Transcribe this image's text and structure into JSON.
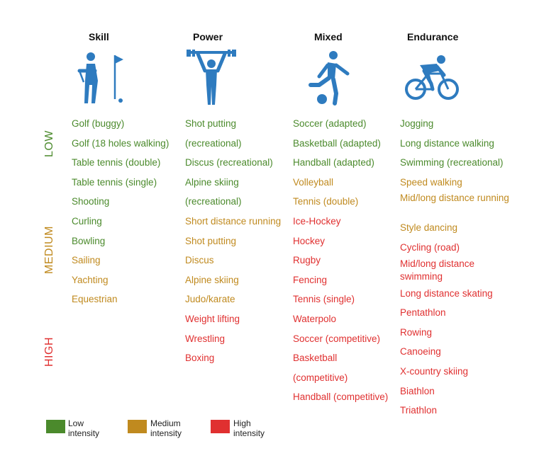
{
  "columns": [
    {
      "title": "Skill",
      "icon": "golfer-icon",
      "items": [
        {
          "text": "Golf (buggy)",
          "level": "low"
        },
        {
          "text": "Golf (18 holes walking)",
          "level": "low"
        },
        {
          "text": "Table tennis (double)",
          "level": "low"
        },
        {
          "text": "Table tennis (single)",
          "level": "low"
        },
        {
          "text": "Shooting",
          "level": "low"
        },
        {
          "text": "Curling",
          "level": "low"
        },
        {
          "text": "Bowling",
          "level": "low"
        },
        {
          "text": "Sailing",
          "level": "medium"
        },
        {
          "text": "Yachting",
          "level": "medium"
        },
        {
          "text": "Equestrian",
          "level": "medium"
        }
      ]
    },
    {
      "title": "Power",
      "icon": "weightlifter-icon",
      "items": [
        {
          "text": "Shot putting",
          "level": "low"
        },
        {
          "text": "(recreational)",
          "level": "low"
        },
        {
          "text": "Discus (recreational)",
          "level": "low"
        },
        {
          "text": "Alpine skiing",
          "level": "low"
        },
        {
          "text": "(recreational)",
          "level": "low"
        },
        {
          "text": "Short distance running",
          "level": "medium"
        },
        {
          "text": "Shot putting",
          "level": "medium"
        },
        {
          "text": "Discus",
          "level": "medium"
        },
        {
          "text": "Alpine skiing",
          "level": "medium"
        },
        {
          "text": "Judo/karate",
          "level": "medium"
        },
        {
          "text": "Weight lifting",
          "level": "high"
        },
        {
          "text": "Wrestling",
          "level": "high"
        },
        {
          "text": "Boxing",
          "level": "high"
        }
      ]
    },
    {
      "title": "Mixed",
      "icon": "soccer-player-icon",
      "items": [
        {
          "text": "Soccer (adapted)",
          "level": "low"
        },
        {
          "text": "Basketball (adapted)",
          "level": "low"
        },
        {
          "text": "Handball (adapted)",
          "level": "low"
        },
        {
          "text": "Volleyball",
          "level": "medium"
        },
        {
          "text": "Tennis (double)",
          "level": "medium"
        },
        {
          "text": "Ice-Hockey",
          "level": "high"
        },
        {
          "text": "Hockey",
          "level": "high"
        },
        {
          "text": "Rugby",
          "level": "high"
        },
        {
          "text": "Fencing",
          "level": "high"
        },
        {
          "text": "Tennis (single)",
          "level": "high"
        },
        {
          "text": "Waterpolo",
          "level": "high"
        },
        {
          "text": "Soccer (competitive)",
          "level": "high"
        },
        {
          "text": "Basketball",
          "level": "high"
        },
        {
          "text": "(competitive)",
          "level": "high"
        },
        {
          "text": "Handball (competitive)",
          "level": "high"
        }
      ]
    },
    {
      "title": "Endurance",
      "icon": "cyclist-icon",
      "items": [
        {
          "text": "Jogging",
          "level": "low"
        },
        {
          "text": "Long distance walking",
          "level": "low"
        },
        {
          "text": "Swimming (recreational)",
          "level": "low"
        },
        {
          "text": "Speed walking",
          "level": "medium"
        },
        {
          "text": "Mid/long distance running",
          "level": "medium",
          "wrap": true
        },
        {
          "text": "Style dancing",
          "level": "medium"
        },
        {
          "text": "Cycling (road)",
          "level": "high"
        },
        {
          "text": "Mid/long distance swimming",
          "level": "high",
          "wrap": true
        },
        {
          "text": "Long distance skating",
          "level": "high"
        },
        {
          "text": "Pentathlon",
          "level": "high"
        },
        {
          "text": "Rowing",
          "level": "high"
        },
        {
          "text": "Canoeing",
          "level": "high"
        },
        {
          "text": "X-country skiing",
          "level": "high"
        },
        {
          "text": "Biathlon",
          "level": "high"
        },
        {
          "text": "Triathlon",
          "level": "high"
        }
      ]
    }
  ],
  "side_labels": {
    "low": "LOW",
    "medium": "MEDIUM",
    "high": "HIGH"
  },
  "legend": [
    {
      "label": "Low intensity",
      "color": "#4b8a2c"
    },
    {
      "label": "Medium intensity",
      "color": "#c08a1f"
    },
    {
      "label": "High intensity",
      "color": "#e03030"
    }
  ],
  "colors": {
    "low": "#4b8a2c",
    "medium": "#c08a1f",
    "high": "#e03030",
    "icon": "#2e7bbf"
  }
}
